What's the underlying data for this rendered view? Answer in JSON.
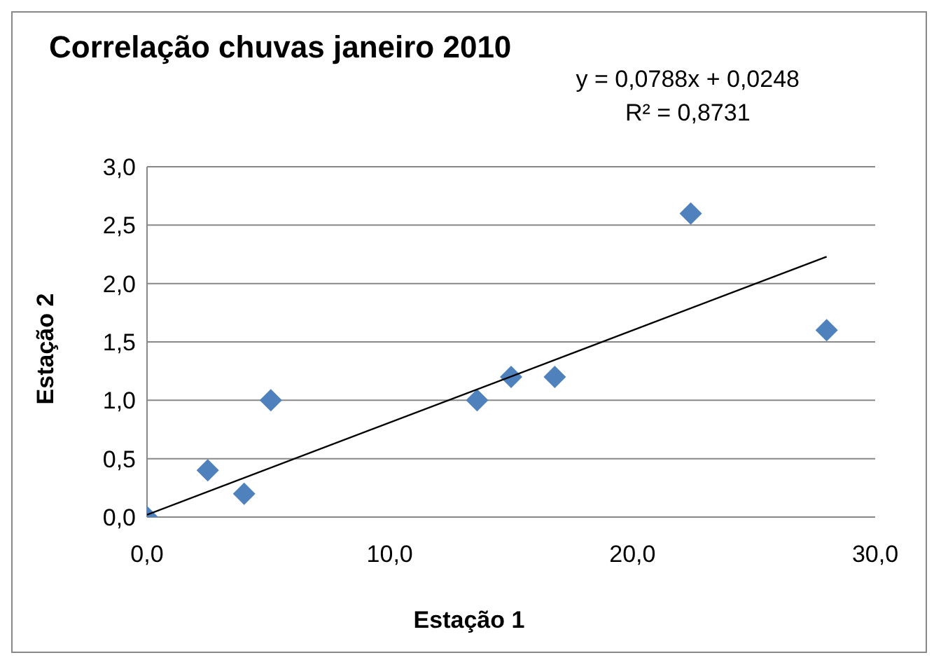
{
  "chart_data": {
    "type": "scatter",
    "title": "Correlação chuvas janeiro 2010",
    "xlabel": "Estação 1",
    "ylabel": "Estação 2",
    "annotations": [
      "y = 0,0788x + 0,0248",
      "R² = 0,8731"
    ],
    "series": [
      {
        "color": "#4f81bd",
        "marker": "diamond",
        "x": [
          0,
          2.5,
          4.0,
          5.1,
          13.6,
          15.0,
          16.8,
          22.4,
          28.0
        ],
        "values": [
          0,
          0.4,
          0.2,
          1.0,
          1.0,
          1.2,
          1.2,
          2.6,
          1.6
        ]
      },
      {
        "type": "line",
        "color": "#000000",
        "marker": "none",
        "x": [
          0,
          28
        ],
        "values": [
          0.02,
          2.23
        ]
      }
    ],
    "xlim": [
      0,
      30
    ],
    "xticks": [
      {
        "value": 0,
        "label": "0,0"
      },
      {
        "value": 10,
        "label": "10,0"
      },
      {
        "value": 20,
        "label": "20,0"
      },
      {
        "value": 30,
        "label": "30,0"
      }
    ],
    "ylim": [
      0,
      3
    ],
    "yticks": [
      {
        "value": 0,
        "label": "0,0"
      },
      {
        "value": 0.5,
        "label": "0,5"
      },
      {
        "value": 1,
        "label": "1,0"
      },
      {
        "value": 1.5,
        "label": "1,5"
      },
      {
        "value": 2,
        "label": "2,0"
      },
      {
        "value": 2.5,
        "label": "2,5"
      },
      {
        "value": 3,
        "label": "3,0"
      }
    ],
    "grid": "y",
    "legend": false
  }
}
